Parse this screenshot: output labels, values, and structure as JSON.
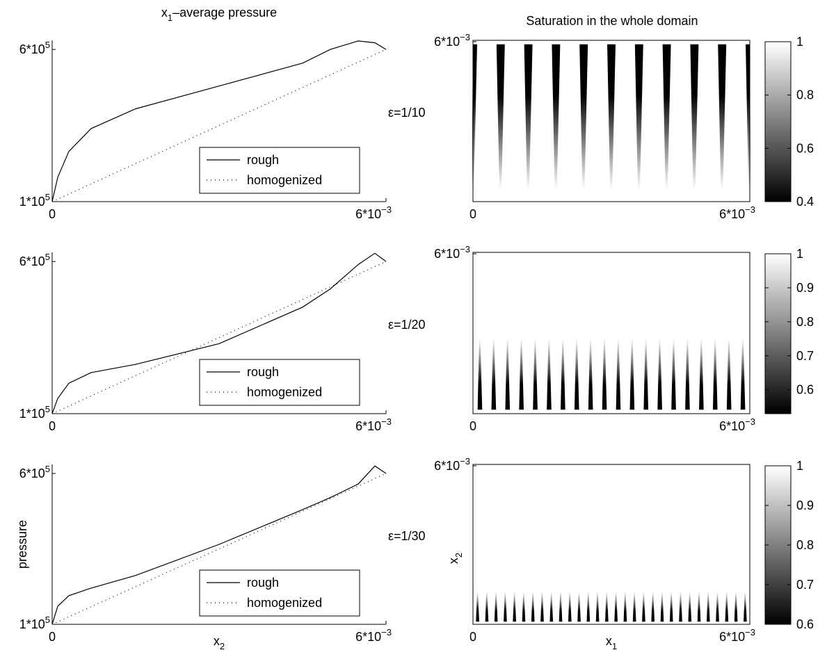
{
  "chart_data": [
    {
      "type": "line",
      "title": [
        "x",
        "1",
        "–average pressure"
      ],
      "xlim": [
        0,
        0.006
      ],
      "ylim": [
        100000,
        630000
      ],
      "xticks": [
        0,
        {
          "value": 0.006,
          "label": "6*10",
          "exp": "−3"
        }
      ],
      "yticks": [
        {
          "value": 100000,
          "label": "1*10",
          "exp": "5"
        },
        {
          "value": 600000,
          "label": "6*10",
          "exp": "5"
        }
      ],
      "x": [
        0,
        0.0001,
        0.0003,
        0.0007,
        0.0015,
        0.003,
        0.0045,
        0.005,
        0.0055,
        0.0058,
        0.006
      ],
      "series": [
        {
          "name": "rough",
          "color": "#000000",
          "style": "solid",
          "values": [
            100000,
            180000,
            265000,
            340000,
            405000,
            480000,
            555000,
            600000,
            628000,
            622000,
            600000
          ]
        },
        {
          "name": "homogenized",
          "color": "#000000",
          "style": "dotted",
          "values": [
            100000,
            108333,
            125000,
            158333,
            225000,
            350000,
            475000,
            516667,
            558333,
            583333,
            600000
          ]
        }
      ],
      "legend": "lower right"
    },
    {
      "type": "heatmap",
      "title": "Saturation in the whole domain",
      "annotation": "ε=1/10",
      "xlim": [
        0,
        0.006
      ],
      "ylim": [
        0,
        0.006
      ],
      "xticks": [
        0,
        {
          "value": 0.006,
          "label": "6*10",
          "exp": "−3"
        }
      ],
      "yticks": [
        {
          "value": 0.006,
          "label": "6*10",
          "exp": "−3"
        }
      ],
      "clim": [
        0.4,
        1
      ],
      "cticks": [
        0.4,
        0.6,
        0.8,
        1
      ],
      "colormap": "gray",
      "fingers": {
        "x": [
          0,
          0.0006,
          0.0012,
          0.0018,
          0.0024,
          0.003,
          0.0036,
          0.0042,
          0.0048,
          0.0054,
          0.006
        ],
        "top": 0.0059,
        "bottom": 0.0004,
        "width": 0.00018,
        "min": 0.4,
        "dark_end": "top"
      }
    },
    {
      "type": "line",
      "xlim": [
        0,
        0.006
      ],
      "ylim": [
        100000,
        630000
      ],
      "xticks": [
        0,
        {
          "value": 0.006,
          "label": "6*10",
          "exp": "−3"
        }
      ],
      "yticks": [
        {
          "value": 100000,
          "label": "1*10",
          "exp": "5"
        },
        {
          "value": 600000,
          "label": "6*10",
          "exp": "5"
        }
      ],
      "x": [
        0,
        0.0001,
        0.0003,
        0.0007,
        0.0015,
        0.003,
        0.0045,
        0.005,
        0.0055,
        0.0058,
        0.006
      ],
      "series": [
        {
          "name": "rough",
          "color": "#000000",
          "style": "solid",
          "values": [
            100000,
            150000,
            200000,
            235000,
            262000,
            330000,
            450000,
            510000,
            590000,
            627000,
            600000
          ]
        },
        {
          "name": "homogenized",
          "color": "#000000",
          "style": "dotted",
          "values": [
            100000,
            108333,
            125000,
            158333,
            225000,
            350000,
            475000,
            516667,
            558333,
            583333,
            600000
          ]
        }
      ],
      "legend": "lower right"
    },
    {
      "type": "heatmap",
      "annotation": "ε=1/20",
      "xlim": [
        0,
        0.006
      ],
      "ylim": [
        0,
        0.006
      ],
      "xticks": [
        0,
        {
          "value": 0.006,
          "label": "6*10",
          "exp": "−3"
        }
      ],
      "yticks": [
        {
          "value": 0.006,
          "label": "6*10",
          "exp": "−3"
        }
      ],
      "clim": [
        0.53,
        1
      ],
      "cticks": [
        0.6,
        0.7,
        0.8,
        0.9,
        1
      ],
      "colormap": "gray",
      "fingers": {
        "x": [
          0.00015,
          0.00045,
          0.00075,
          0.00105,
          0.00135,
          0.00165,
          0.00195,
          0.00225,
          0.00255,
          0.00285,
          0.00315,
          0.00345,
          0.00375,
          0.00405,
          0.00435,
          0.00465,
          0.00495,
          0.00525,
          0.00555,
          0.00585
        ],
        "top": 0.0028,
        "bottom": 0.0001,
        "width": 0.0001,
        "min": 0.53,
        "dark_end": "bottom"
      }
    },
    {
      "type": "line",
      "xlabel": [
        "x",
        "2"
      ],
      "ylabel": "pressure",
      "xlim": [
        0,
        0.006
      ],
      "ylim": [
        100000,
        630000
      ],
      "xticks": [
        0,
        {
          "value": 0.006,
          "label": "6*10",
          "exp": "−3"
        }
      ],
      "yticks": [
        {
          "value": 100000,
          "label": "1*10",
          "exp": "5"
        },
        {
          "value": 600000,
          "label": "6*10",
          "exp": "5"
        }
      ],
      "x": [
        0,
        0.0001,
        0.0003,
        0.0007,
        0.0015,
        0.003,
        0.0045,
        0.005,
        0.0055,
        0.0058,
        0.006
      ],
      "series": [
        {
          "name": "rough",
          "color": "#000000",
          "style": "solid",
          "values": [
            100000,
            160000,
            195000,
            220000,
            262000,
            365000,
            480000,
            520000,
            565000,
            625000,
            600000
          ]
        },
        {
          "name": "homogenized",
          "color": "#000000",
          "style": "dotted",
          "values": [
            100000,
            108333,
            125000,
            158333,
            225000,
            350000,
            475000,
            516667,
            558333,
            583333,
            600000
          ]
        }
      ],
      "legend": "lower right"
    },
    {
      "type": "heatmap",
      "annotation": "ε=1/30",
      "xlabel": [
        "x",
        "1"
      ],
      "ylabel": [
        "x",
        "2"
      ],
      "xlim": [
        0,
        0.006
      ],
      "ylim": [
        0,
        0.006
      ],
      "xticks": [
        0,
        {
          "value": 0.006,
          "label": "6*10",
          "exp": "−3"
        }
      ],
      "yticks": [
        {
          "value": 0.006,
          "label": "6*10",
          "exp": "−3"
        }
      ],
      "clim": [
        0.6,
        1
      ],
      "cticks": [
        0.6,
        0.7,
        0.8,
        0.9,
        1
      ],
      "colormap": "gray",
      "fingers": {
        "x": [
          0.0001,
          0.0003,
          0.0005,
          0.0007,
          0.0009,
          0.0011,
          0.0013,
          0.0015,
          0.0017,
          0.0019,
          0.0021,
          0.0023,
          0.0025,
          0.0027,
          0.0029,
          0.0031,
          0.0033,
          0.0035,
          0.0037,
          0.0039,
          0.0041,
          0.0043,
          0.0045,
          0.0047,
          0.0049,
          0.0051,
          0.0053,
          0.0055,
          0.0057,
          0.0059
        ],
        "top": 0.0012,
        "bottom": 5e-05,
        "width": 7e-05,
        "min": 0.6,
        "dark_end": "bottom"
      }
    }
  ]
}
